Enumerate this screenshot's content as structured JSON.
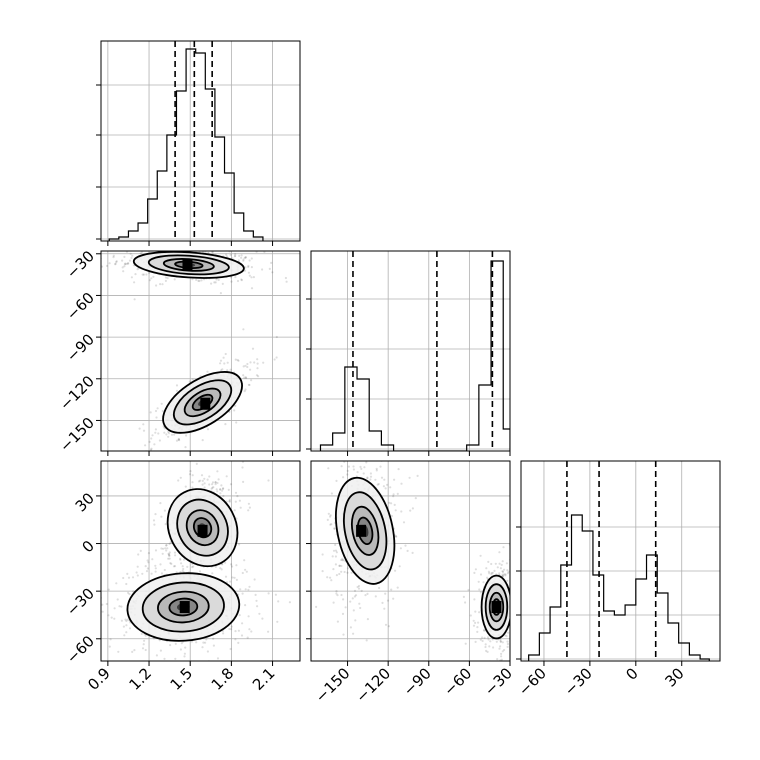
{
  "figure": {
    "name": "corner-plot"
  },
  "colors": {
    "ink": "#000000",
    "grid": "#b0b0b0",
    "background": "#ffffff",
    "fill_levels": [
      "#f0f0f0",
      "#d6d6d6",
      "#b3b3b3",
      "#7d7d7d",
      "#2f2f2f"
    ]
  },
  "chart_data": [
    {
      "id": "hist-p0",
      "type": "bar",
      "style": "step-histogram",
      "xlim": [
        0.85,
        2.3
      ],
      "ylim": [
        0,
        1.0
      ],
      "xticks": [
        0.9,
        1.2,
        1.5,
        1.8,
        2.1
      ],
      "yticks": [
        0.01,
        0.27,
        0.53,
        0.78
      ],
      "show_xtick_labels": false,
      "show_ytick_labels": false,
      "grid": true,
      "bin_edges": [
        0.91,
        0.98,
        1.05,
        1.12,
        1.19,
        1.26,
        1.33,
        1.4,
        1.47,
        1.54,
        1.61,
        1.68,
        1.75,
        1.82,
        1.89,
        1.96,
        2.03
      ],
      "counts": [
        0.01,
        0.02,
        0.05,
        0.09,
        0.21,
        0.35,
        0.53,
        0.75,
        0.96,
        0.94,
        0.76,
        0.52,
        0.34,
        0.14,
        0.05,
        0.02
      ],
      "quantiles": [
        1.39,
        1.53,
        1.66
      ]
    },
    {
      "id": "hist-p1",
      "type": "bar",
      "style": "step-histogram",
      "xlim": [
        -177,
        -30
      ],
      "ylim": [
        0,
        1.0
      ],
      "xticks": [
        -150,
        -120,
        -90,
        -60,
        -30
      ],
      "yticks": [
        0.01,
        0.26,
        0.51,
        0.76
      ],
      "show_xtick_labels": false,
      "show_ytick_labels": false,
      "grid": true,
      "bin_edges": [
        -170,
        -161,
        -152,
        -143,
        -134,
        -125,
        -116,
        -107,
        -98,
        -89,
        -80,
        -71,
        -62,
        -53,
        -44,
        -35,
        -30
      ],
      "counts": [
        0.03,
        0.09,
        0.42,
        0.36,
        0.1,
        0.03,
        0,
        0,
        0,
        0,
        0,
        0,
        0.03,
        0.33,
        0.95,
        0.11
      ],
      "quantiles": [
        -146,
        -84,
        -43
      ]
    },
    {
      "id": "hist-p2",
      "type": "bar",
      "style": "step-histogram",
      "xlim": [
        -75,
        55
      ],
      "ylim": [
        0,
        1.0
      ],
      "xticks": [
        -60,
        -30,
        0,
        30
      ],
      "yticks": [
        0.01,
        0.23,
        0.45,
        0.67
      ],
      "show_xtick_labels": true,
      "show_ytick_labels": false,
      "grid": true,
      "bin_edges": [
        -70,
        -63,
        -56,
        -49,
        -42,
        -35,
        -28,
        -21,
        -14,
        -7,
        0,
        7,
        14,
        21,
        28,
        35,
        42,
        48
      ],
      "counts": [
        0.03,
        0.14,
        0.27,
        0.48,
        0.73,
        0.65,
        0.43,
        0.25,
        0.23,
        0.28,
        0.41,
        0.53,
        0.34,
        0.19,
        0.09,
        0.03,
        0.01
      ],
      "quantiles": [
        -45,
        -24,
        13
      ]
    },
    {
      "id": "scatter-p0-p1",
      "type": "scatter",
      "style": "2d-density",
      "xlim": [
        0.85,
        2.3
      ],
      "ylim": [
        -172,
        -28
      ],
      "xticks": [
        0.9,
        1.2,
        1.5,
        1.8,
        2.1
      ],
      "yticks": [
        -30,
        -60,
        -90,
        -120,
        -150
      ],
      "show_xtick_labels": false,
      "show_ytick_labels": true,
      "grid": true,
      "clusters": [
        {
          "center": [
            1.49,
            -38
          ],
          "spread": [
            0.17,
            4.5
          ],
          "corr": -0.25,
          "weight": 0.5,
          "peak": [
            1.48,
            -38
          ]
        },
        {
          "center": [
            1.59,
            -137
          ],
          "spread": [
            0.12,
            10
          ],
          "corr": 0.75,
          "weight": 0.5,
          "peak": [
            1.61,
            -138
          ]
        }
      ]
    },
    {
      "id": "scatter-p0-p2",
      "type": "scatter",
      "style": "2d-density",
      "xlim": [
        0.85,
        2.3
      ],
      "ylim": [
        -74,
        52
      ],
      "xticks": [
        0.9,
        1.2,
        1.5,
        1.8,
        2.1
      ],
      "yticks": [
        30,
        0,
        -30,
        -60
      ],
      "show_xtick_labels": true,
      "show_ytick_labels": true,
      "grid": true,
      "clusters": [
        {
          "center": [
            1.59,
            10
          ],
          "spread": [
            0.1,
            13
          ],
          "corr": 0.35,
          "weight": 0.5,
          "peak": [
            1.59,
            8
          ]
        },
        {
          "center": [
            1.45,
            -40
          ],
          "spread": [
            0.18,
            10
          ],
          "corr": 0.1,
          "weight": 0.5,
          "peak": [
            1.46,
            -40
          ]
        }
      ]
    },
    {
      "id": "scatter-p1-p2",
      "type": "scatter",
      "style": "2d-density",
      "xlim": [
        -177,
        -30
      ],
      "ylim": [
        -74,
        52
      ],
      "xticks": [
        -150,
        -120,
        -90,
        -60,
        -30
      ],
      "yticks": [
        30,
        0,
        -30,
        -60
      ],
      "show_xtick_labels": true,
      "show_ytick_labels": false,
      "grid": true,
      "clusters": [
        {
          "center": [
            -137,
            8
          ],
          "spread": [
            9,
            16
          ],
          "corr": 0.1,
          "weight": 0.5,
          "peak": [
            -140,
            8
          ]
        },
        {
          "center": [
            -40,
            -40
          ],
          "spread": [
            5,
            9
          ],
          "corr": 0.0,
          "weight": 0.5,
          "peak": [
            -40,
            -40
          ]
        }
      ]
    }
  ]
}
